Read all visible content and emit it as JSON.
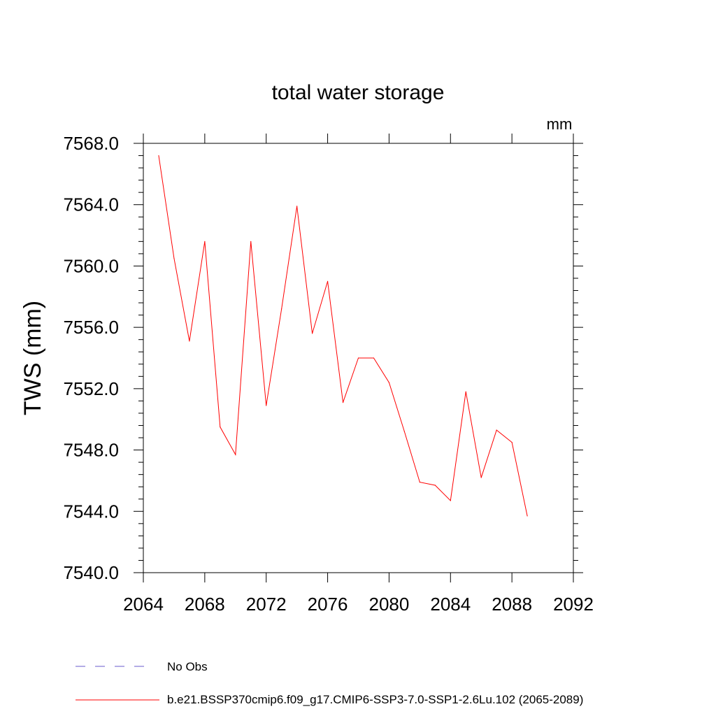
{
  "chart_data": {
    "type": "line",
    "title": "total water storage",
    "units_label": "mm",
    "xlabel": "",
    "ylabel": "TWS  (mm)",
    "xlim": [
      2064,
      2092
    ],
    "ylim": [
      7540,
      7568
    ],
    "xticks": [
      2064,
      2068,
      2072,
      2076,
      2080,
      2084,
      2088,
      2092
    ],
    "xtick_labels": [
      "2064",
      "2068",
      "2072",
      "2076",
      "2080",
      "2084",
      "2088",
      "2092"
    ],
    "yticks": [
      7540,
      7544,
      7548,
      7552,
      7556,
      7560,
      7564,
      7568
    ],
    "ytick_labels": [
      "7540.0",
      "7544.0",
      "7548.0",
      "7552.0",
      "7556.0",
      "7560.0",
      "7564.0",
      "7568.0"
    ],
    "grid": false,
    "series": [
      {
        "name": "b.e21.BSSP370cmip6.f09_g17.CMIP6-SSP3-7.0-SSP1-2.6Lu.102 (2065-2089)",
        "color": "#ff0000",
        "style": "solid",
        "x": [
          2065,
          2066,
          2067,
          2068,
          2069,
          2070,
          2071,
          2072,
          2073,
          2074,
          2075,
          2076,
          2077,
          2078,
          2079,
          2080,
          2081,
          2082,
          2083,
          2084,
          2085,
          2086,
          2087,
          2088,
          2089
        ],
        "values": [
          7567.2,
          7560.5,
          7555.1,
          7561.6,
          7549.5,
          7547.7,
          7561.6,
          7550.9,
          7557.2,
          7563.9,
          7555.6,
          7559.0,
          7551.1,
          7554.0,
          7554.0,
          7552.4,
          7549.2,
          7545.9,
          7545.7,
          7544.7,
          7551.8,
          7546.2,
          7549.3,
          7548.5,
          7543.7
        ]
      }
    ],
    "legend": {
      "placement": "bottom-left",
      "entries": [
        {
          "label": "No Obs",
          "color": "#6a5acd",
          "style": "dashed"
        },
        {
          "label": "b.e21.BSSP370cmip6.f09_g17.CMIP6-SSP3-7.0-SSP1-2.6Lu.102 (2065-2089)",
          "color": "#ff0000",
          "style": "solid"
        }
      ]
    }
  }
}
